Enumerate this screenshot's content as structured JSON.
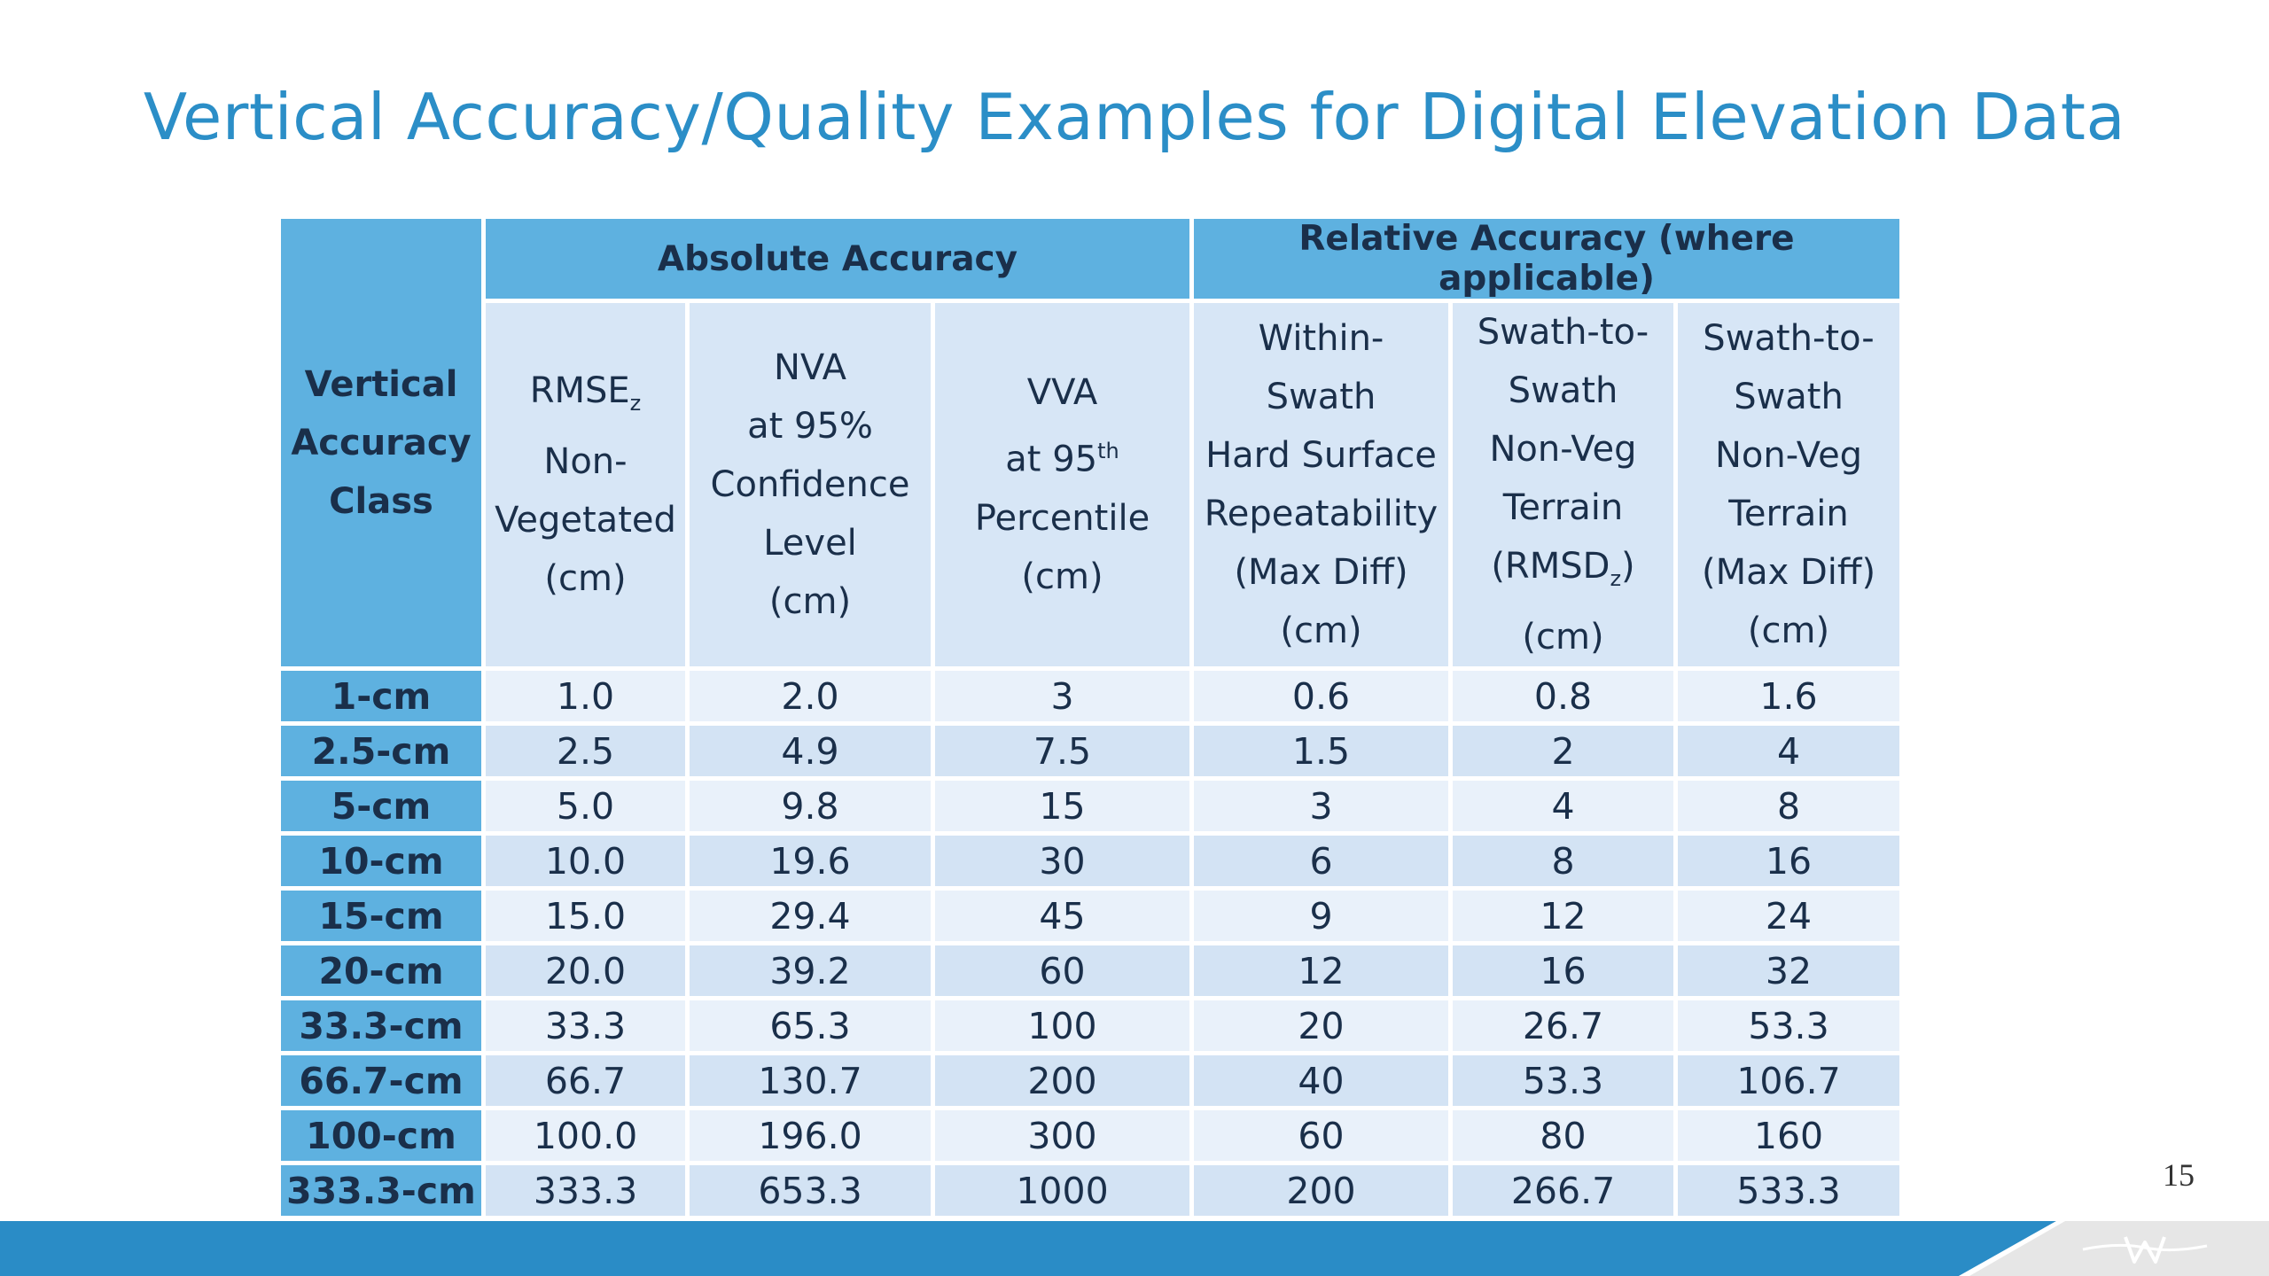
{
  "title": "Vertical Accuracy/Quality Examples for Digital Elevation Data",
  "table": {
    "group_headers": {
      "absolute": "Absolute Accuracy",
      "relative": "Relative Accuracy (where applicable)"
    },
    "class_header": [
      "Vertical",
      "Accuracy",
      "Class"
    ],
    "rmse": {
      "l1": "RMSE",
      "sub": "z",
      "l2": "Non-",
      "l3": "Vegetated",
      "l4": "(cm)"
    },
    "nva": [
      "NVA",
      "at 95%",
      "Confidence",
      "Level",
      "(cm)"
    ],
    "vva": {
      "l1": "VVA",
      "l2a": "at 95",
      "sup": "th",
      "l3": "Percentile",
      "l4": "(cm)"
    },
    "within_swath": [
      "Within-",
      "Swath",
      "Hard Surface",
      "Repeatability",
      "(Max Diff)",
      "(cm)"
    ],
    "swath_rmsd": {
      "l1": "Swath-to-",
      "l2": "Swath",
      "l3": "Non-Veg",
      "l4": "Terrain",
      "l5a": "(RMSD",
      "sub": "z",
      "l5b": ")",
      "l6": "(cm)"
    },
    "swath_maxdiff": [
      "Swath-to-",
      "Swath",
      "Non-Veg",
      "Terrain",
      "(Max Diff)",
      "(cm)"
    ],
    "rows": [
      [
        "1-cm",
        "1.0",
        "2.0",
        "3",
        "0.6",
        "0.8",
        "1.6"
      ],
      [
        "2.5-cm",
        "2.5",
        "4.9",
        "7.5",
        "1.5",
        "2",
        "4"
      ],
      [
        "5-cm",
        "5.0",
        "9.8",
        "15",
        "3",
        "4",
        "8"
      ],
      [
        "10-cm",
        "10.0",
        "19.6",
        "30",
        "6",
        "8",
        "16"
      ],
      [
        "15-cm",
        "15.0",
        "29.4",
        "45",
        "9",
        "12",
        "24"
      ],
      [
        "20-cm",
        "20.0",
        "39.2",
        "60",
        "12",
        "16",
        "32"
      ],
      [
        "33.3-cm",
        "33.3",
        "65.3",
        "100",
        "20",
        "26.7",
        "53.3"
      ],
      [
        "66.7-cm",
        "66.7",
        "130.7",
        "200",
        "40",
        "53.3",
        "106.7"
      ],
      [
        "100-cm",
        "100.0",
        "196.0",
        "300",
        "60",
        "80",
        "160"
      ],
      [
        "333.3-cm",
        "333.3",
        "653.3",
        "1000",
        "200",
        "266.7",
        "533.3"
      ]
    ]
  },
  "page_number": "15",
  "colors": {
    "title": "#2b8ec7",
    "header_dark": "#5eb1e0",
    "header_light": "#d7e6f6",
    "row_light": "#e9f1fa",
    "row_mid": "#d3e3f4",
    "bottom_bar": "#2a8cc6"
  },
  "icons": {
    "logo": "wavy-w-logo"
  }
}
